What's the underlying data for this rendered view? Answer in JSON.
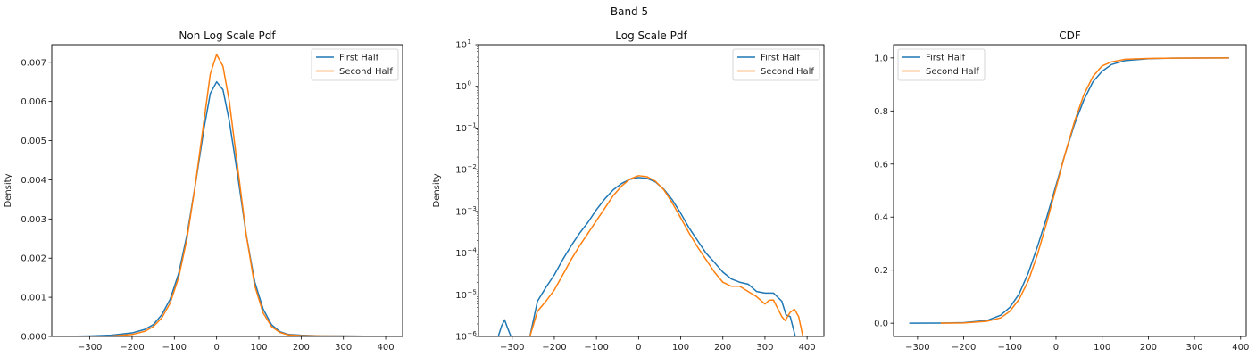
{
  "figure": {
    "suptitle": "Band 5"
  },
  "colors": {
    "first": "#1f77b4",
    "second": "#ff7f0e",
    "axis": "#000000",
    "legend_border": "#cccccc"
  },
  "chart_data": [
    {
      "type": "line",
      "title": "Non Log Scale Pdf",
      "xlabel": "",
      "ylabel": "Density",
      "xlim": [
        -390,
        440
      ],
      "ylim": [
        0,
        0.00745
      ],
      "yscale": "linear",
      "xticks": [
        -300,
        -200,
        -100,
        0,
        100,
        200,
        300,
        400
      ],
      "xtick_labels": [
        "−300",
        "−200",
        "−100",
        "0",
        "100",
        "200",
        "300",
        "400"
      ],
      "yticks": [
        0,
        0.001,
        0.002,
        0.003,
        0.004,
        0.005,
        0.006,
        0.007
      ],
      "ytick_labels": [
        "0.000",
        "0.001",
        "0.002",
        "0.003",
        "0.004",
        "0.005",
        "0.006",
        "0.007"
      ],
      "legend_position": "top-right",
      "series": [
        {
          "name": "First Half",
          "color_key": "first",
          "x": [
            -360,
            -300,
            -250,
            -200,
            -170,
            -150,
            -130,
            -110,
            -90,
            -70,
            -50,
            -30,
            -15,
            0,
            15,
            30,
            50,
            70,
            90,
            110,
            130,
            150,
            170,
            200,
            250,
            300,
            350,
            400
          ],
          "y": [
            0,
            1e-05,
            3e-05,
            9e-05,
            0.00018,
            0.0003,
            0.00055,
            0.00095,
            0.0016,
            0.0026,
            0.0039,
            0.0053,
            0.0062,
            0.0065,
            0.0063,
            0.0055,
            0.0041,
            0.0026,
            0.0014,
            0.0007,
            0.0003,
            0.00012,
            5e-05,
            3e-05,
            1e-05,
            1e-05,
            5e-06,
            0
          ]
        },
        {
          "name": "Second Half",
          "color_key": "second",
          "x": [
            -260,
            -200,
            -170,
            -150,
            -130,
            -110,
            -90,
            -70,
            -50,
            -30,
            -15,
            0,
            15,
            30,
            50,
            70,
            90,
            110,
            130,
            150,
            170,
            200,
            250,
            300,
            350,
            390
          ],
          "y": [
            0,
            5e-05,
            0.00013,
            0.00025,
            0.00047,
            0.00085,
            0.0015,
            0.0025,
            0.0039,
            0.0055,
            0.0067,
            0.0072,
            0.0069,
            0.006,
            0.0043,
            0.0026,
            0.0013,
            0.0006,
            0.00025,
            0.0001,
            4e-05,
            2e-05,
            1e-05,
            8e-06,
            5e-06,
            0
          ]
        }
      ]
    },
    {
      "type": "line",
      "title": "Log Scale Pdf",
      "xlabel": "",
      "ylabel": "Density",
      "xlim": [
        -380,
        440
      ],
      "ylim": [
        1e-06,
        10
      ],
      "yscale": "log",
      "xticks": [
        -300,
        -200,
        -100,
        0,
        100,
        200,
        300,
        400
      ],
      "xtick_labels": [
        "−300",
        "−200",
        "−100",
        "0",
        "100",
        "200",
        "300",
        "400"
      ],
      "yticks": [
        1e-06,
        1e-05,
        0.0001,
        0.001,
        0.01,
        0.1,
        1,
        10
      ],
      "ytick_labels": [
        "10",
        "10",
        "10",
        "10",
        "10",
        "10",
        "10",
        "10"
      ],
      "ytick_exponents": [
        "−6",
        "−5",
        "−4",
        "−3",
        "−2",
        "−1",
        "0",
        "1"
      ],
      "legend_position": "top-right",
      "series": [
        {
          "name": "First Half",
          "color_key": "first",
          "segments": [
            {
              "x": [
                -333,
                -325,
                -318,
                -311,
                -303
              ],
              "y": [
                1e-06,
                1.8e-06,
                2.5e-06,
                1.6e-06,
                1e-06
              ]
            },
            {
              "x": [
                -258,
                -240,
                -220,
                -200,
                -180,
                -160,
                -140,
                -120,
                -100,
                -80,
                -60,
                -40,
                -20,
                0,
                20,
                40,
                60,
                80,
                100,
                120,
                140,
                160,
                180,
                200,
                220,
                240,
                260,
                280,
                300,
                320,
                340,
                350,
                360,
                372
              ],
              "y": [
                1e-06,
                7e-06,
                1.5e-05,
                3e-05,
                7e-05,
                0.00015,
                0.0003,
                0.00055,
                0.0011,
                0.002,
                0.0033,
                0.0047,
                0.0059,
                0.0065,
                0.0062,
                0.0051,
                0.0034,
                0.0019,
                0.0009,
                0.0004,
                0.0002,
                0.0001,
                6e-05,
                3.5e-05,
                2.4e-05,
                2e-05,
                1.8e-05,
                1.2e-05,
                1.1e-05,
                1.1e-05,
                7e-06,
                3.3e-06,
                3e-06,
                1e-06
              ]
            }
          ]
        },
        {
          "name": "Second Half",
          "color_key": "second",
          "segments": [
            {
              "x": [
                -258,
                -240,
                -220,
                -200,
                -180,
                -160,
                -140,
                -120,
                -100,
                -80,
                -60,
                -40,
                -20,
                0,
                20,
                40,
                60,
                80,
                100,
                120,
                140,
                160,
                180,
                200,
                220,
                240,
                260,
                280,
                300,
                310,
                320,
                340,
                348,
                360,
                370,
                380,
                390
              ],
              "y": [
                1e-06,
                4e-06,
                7e-06,
                1.3e-05,
                3e-05,
                7e-05,
                0.00015,
                0.0003,
                0.0006,
                0.0012,
                0.0024,
                0.0041,
                0.006,
                0.0072,
                0.0068,
                0.0053,
                0.0033,
                0.0016,
                0.0007,
                0.0003,
                0.00014,
                7e-05,
                3.5e-05,
                2e-05,
                1.6e-05,
                1.6e-05,
                1.2e-05,
                9e-06,
                6e-06,
                7.4e-06,
                7.5e-06,
                3e-06,
                2.4e-06,
                3.8e-06,
                4.5e-06,
                3e-06,
                1e-06
              ]
            }
          ]
        }
      ]
    },
    {
      "type": "line",
      "title": "CDF",
      "xlabel": "",
      "ylabel": "",
      "xlim": [
        -352,
        412
      ],
      "ylim": [
        -0.05,
        1.05
      ],
      "yscale": "linear",
      "xticks": [
        -300,
        -200,
        -100,
        0,
        100,
        200,
        300,
        400
      ],
      "xtick_labels": [
        "−300",
        "−200",
        "−100",
        "0",
        "100",
        "200",
        "300",
        "400"
      ],
      "yticks": [
        0,
        0.2,
        0.4,
        0.6,
        0.8,
        1.0
      ],
      "ytick_labels": [
        "0.0",
        "0.2",
        "0.4",
        "0.6",
        "0.8",
        "1.0"
      ],
      "legend_position": "top-left",
      "series": [
        {
          "name": "First Half",
          "color_key": "first",
          "x": [
            -318,
            -250,
            -200,
            -150,
            -120,
            -100,
            -80,
            -60,
            -40,
            -20,
            0,
            20,
            40,
            60,
            80,
            100,
            120,
            150,
            200,
            250,
            300,
            375
          ],
          "y": [
            0,
            0.0005,
            0.002,
            0.01,
            0.03,
            0.06,
            0.11,
            0.19,
            0.29,
            0.4,
            0.52,
            0.64,
            0.75,
            0.84,
            0.91,
            0.95,
            0.975,
            0.99,
            0.997,
            0.999,
            0.9995,
            1.0
          ]
        },
        {
          "name": "Second Half",
          "color_key": "second",
          "x": [
            -250,
            -200,
            -150,
            -120,
            -100,
            -80,
            -60,
            -40,
            -20,
            0,
            20,
            40,
            60,
            80,
            100,
            120,
            150,
            200,
            250,
            300,
            375
          ],
          "y": [
            0,
            0.001,
            0.007,
            0.02,
            0.045,
            0.09,
            0.16,
            0.26,
            0.38,
            0.51,
            0.64,
            0.76,
            0.86,
            0.93,
            0.97,
            0.985,
            0.995,
            0.998,
            0.999,
            0.9995,
            1.0
          ]
        }
      ]
    }
  ]
}
